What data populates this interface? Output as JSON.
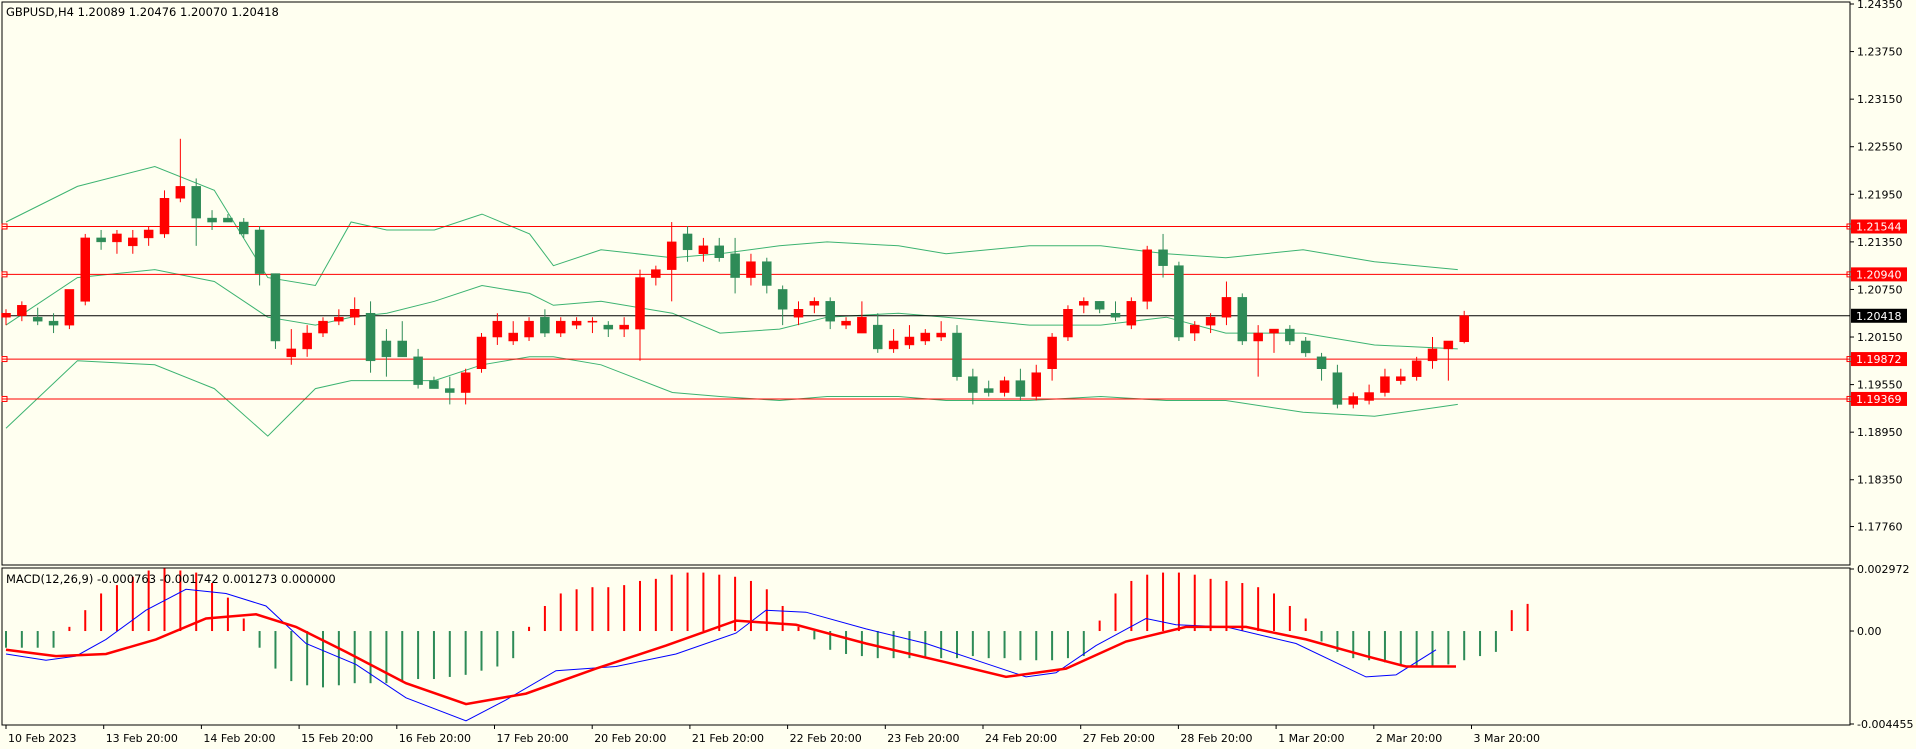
{
  "colors": {
    "background": "#fffff0",
    "frame": "#000000",
    "bull": "#2e8b57",
    "bear": "#ff0000",
    "bollinger": "#3cb371",
    "levels": "#ff0000",
    "current_price_line": "#000000",
    "macd_line": "#0000ff",
    "signal_line": "#ff0000"
  },
  "main_header": "GBPUSD,H4  1.20089 1.20476 1.20070 1.20418",
  "macd_header": "MACD(12,26,9) -0.000763 -0.001742 0.001273 0.000000",
  "chart_data": [
    {
      "type": "candlestick",
      "symbol": "GBPUSD",
      "timeframe": "H4",
      "ohlc_current": {
        "open": 1.20089,
        "high": 1.20476,
        "low": 1.2007,
        "close": 1.20418
      },
      "ylim": [
        1.173,
        1.2435
      ],
      "y_ticks": [
        "1.24350",
        "1.23750",
        "1.23150",
        "1.22550",
        "1.21950",
        "1.21350",
        "1.20750",
        "1.20150",
        "1.19550",
        "1.18950",
        "1.18350",
        "1.17760"
      ],
      "x_tick_labels": [
        "10 Feb 2023",
        "13 Feb 20:00",
        "14 Feb 20:00",
        "15 Feb 20:00",
        "16 Feb 20:00",
        "17 Feb 20:00",
        "20 Feb 20:00",
        "21 Feb 20:00",
        "22 Feb 20:00",
        "23 Feb 20:00",
        "24 Feb 20:00",
        "27 Feb 20:00",
        "28 Feb 20:00",
        "1 Mar 20:00",
        "2 Mar 20:00",
        "3 Mar 20:00"
      ],
      "horizontal_levels": [
        "1.21544",
        "1.20940",
        "1.19872",
        "1.19369"
      ],
      "current_price_label": "1.20418",
      "candles": [
        [
          1.204,
          1.205,
          1.203,
          1.2045
        ],
        [
          1.2042,
          1.206,
          1.2035,
          1.2055
        ],
        [
          1.204,
          1.2052,
          1.203,
          1.2035
        ],
        [
          1.2035,
          1.2045,
          1.202,
          1.203
        ],
        [
          1.203,
          1.207,
          1.2025,
          1.2075
        ],
        [
          1.206,
          1.2145,
          1.2055,
          1.214
        ],
        [
          1.214,
          1.215,
          1.2125,
          1.2135
        ],
        [
          1.2135,
          1.215,
          1.212,
          1.2145
        ],
        [
          1.213,
          1.215,
          1.212,
          1.214
        ],
        [
          1.214,
          1.2155,
          1.213,
          1.215
        ],
        [
          1.2145,
          1.22,
          1.214,
          1.219
        ],
        [
          1.219,
          1.2265,
          1.2185,
          1.2205
        ],
        [
          1.2205,
          1.2215,
          1.213,
          1.2165
        ],
        [
          1.2165,
          1.2175,
          1.215,
          1.216
        ],
        [
          1.2165,
          1.217,
          1.216,
          1.216
        ],
        [
          1.216,
          1.2165,
          1.214,
          1.2145
        ],
        [
          1.215,
          1.2155,
          1.208,
          1.2095
        ],
        [
          1.2095,
          1.2095,
          1.2,
          1.201
        ],
        [
          1.199,
          1.2025,
          1.198,
          1.2
        ],
        [
          1.2,
          1.203,
          1.199,
          1.202
        ],
        [
          1.202,
          1.204,
          1.2015,
          1.2035
        ],
        [
          1.2035,
          1.205,
          1.203,
          1.204
        ],
        [
          1.204,
          1.2065,
          1.203,
          1.205
        ],
        [
          1.2045,
          1.206,
          1.197,
          1.1985
        ],
        [
          1.201,
          1.2025,
          1.1965,
          1.199
        ],
        [
          1.201,
          1.2035,
          1.199,
          1.199
        ],
        [
          1.199,
          1.2,
          1.195,
          1.1955
        ],
        [
          1.196,
          1.1965,
          1.195,
          1.195
        ],
        [
          1.195,
          1.1965,
          1.193,
          1.1945
        ],
        [
          1.1945,
          1.1975,
          1.193,
          1.197
        ],
        [
          1.1975,
          1.202,
          1.197,
          1.2015
        ],
        [
          1.2015,
          1.2045,
          1.2005,
          1.2035
        ],
        [
          1.201,
          1.2035,
          1.2005,
          1.202
        ],
        [
          1.2015,
          1.204,
          1.201,
          1.2035
        ],
        [
          1.204,
          1.205,
          1.2015,
          1.202
        ],
        [
          1.202,
          1.204,
          1.2015,
          1.2035
        ],
        [
          1.203,
          1.204,
          1.2025,
          1.2035
        ],
        [
          1.2035,
          1.204,
          1.202,
          1.2035
        ],
        [
          1.203,
          1.2035,
          1.2015,
          1.2025
        ],
        [
          1.2025,
          1.204,
          1.2015,
          1.203
        ],
        [
          1.2025,
          1.21,
          1.1985,
          1.209
        ],
        [
          1.209,
          1.2105,
          1.208,
          1.21
        ],
        [
          1.21,
          1.216,
          1.206,
          1.2135
        ],
        [
          1.2145,
          1.2155,
          1.211,
          1.2125
        ],
        [
          1.212,
          1.214,
          1.211,
          1.213
        ],
        [
          1.213,
          1.214,
          1.211,
          1.2115
        ],
        [
          1.212,
          1.214,
          1.207,
          1.209
        ],
        [
          1.209,
          1.212,
          1.208,
          1.211
        ],
        [
          1.211,
          1.2115,
          1.207,
          1.208
        ],
        [
          1.2075,
          1.208,
          1.203,
          1.205
        ],
        [
          1.204,
          1.206,
          1.203,
          1.205
        ],
        [
          1.2055,
          1.2065,
          1.2045,
          1.206
        ],
        [
          1.206,
          1.2065,
          1.2025,
          1.2035
        ],
        [
          1.203,
          1.204,
          1.2025,
          1.2035
        ],
        [
          1.202,
          1.206,
          1.202,
          1.204
        ],
        [
          1.203,
          1.2045,
          1.1995,
          1.2
        ],
        [
          1.2,
          1.2025,
          1.1995,
          1.201
        ],
        [
          1.2005,
          1.203,
          1.2,
          1.2015
        ],
        [
          1.201,
          1.2025,
          1.2005,
          1.202
        ],
        [
          1.2015,
          1.2035,
          1.201,
          1.202
        ],
        [
          1.202,
          1.203,
          1.196,
          1.1965
        ],
        [
          1.1965,
          1.1975,
          1.193,
          1.1945
        ],
        [
          1.195,
          1.196,
          1.194,
          1.1945
        ],
        [
          1.1945,
          1.1965,
          1.194,
          1.196
        ],
        [
          1.196,
          1.1975,
          1.1935,
          1.194
        ],
        [
          1.194,
          1.198,
          1.1935,
          1.197
        ],
        [
          1.1975,
          1.202,
          1.196,
          1.2015
        ],
        [
          1.2015,
          1.2055,
          1.201,
          1.205
        ],
        [
          1.2055,
          1.2065,
          1.2045,
          1.206
        ],
        [
          1.206,
          1.206,
          1.2045,
          1.205
        ],
        [
          1.2045,
          1.206,
          1.2035,
          1.204
        ],
        [
          1.203,
          1.2065,
          1.2025,
          1.206
        ],
        [
          1.206,
          1.213,
          1.205,
          1.2125
        ],
        [
          1.2125,
          1.2145,
          1.209,
          1.2105
        ],
        [
          1.2105,
          1.211,
          1.201,
          1.2015
        ],
        [
          1.202,
          1.2035,
          1.201,
          1.203
        ],
        [
          1.203,
          1.2045,
          1.202,
          1.204
        ],
        [
          1.204,
          1.2085,
          1.203,
          1.2065
        ],
        [
          1.2065,
          1.207,
          1.2005,
          1.201
        ],
        [
          1.201,
          1.203,
          1.1965,
          1.202
        ],
        [
          1.202,
          1.2025,
          1.1995,
          1.2025
        ],
        [
          1.2025,
          1.203,
          1.2005,
          1.201
        ],
        [
          1.201,
          1.2015,
          1.199,
          1.1995
        ],
        [
          1.199,
          1.1995,
          1.196,
          1.1975
        ],
        [
          1.197,
          1.198,
          1.1925,
          1.193
        ],
        [
          1.193,
          1.1945,
          1.1925,
          1.194
        ],
        [
          1.1935,
          1.1955,
          1.193,
          1.1945
        ],
        [
          1.1945,
          1.1975,
          1.194,
          1.1965
        ],
        [
          1.196,
          1.1975,
          1.1955,
          1.1965
        ],
        [
          1.1965,
          1.199,
          1.196,
          1.1985
        ],
        [
          1.1985,
          1.2015,
          1.1975,
          1.2
        ],
        [
          1.2,
          1.201,
          1.196,
          1.201
        ],
        [
          1.2009,
          1.2048,
          1.2007,
          1.2042
        ]
      ],
      "bollinger": {
        "upper": [
          [
            0,
            1.216
          ],
          [
            12,
            1.2205
          ],
          [
            25,
            1.223
          ],
          [
            35,
            1.22
          ],
          [
            44,
            1.209
          ],
          [
            52,
            1.208
          ],
          [
            58,
            1.216
          ],
          [
            64,
            1.215
          ],
          [
            72,
            1.215
          ],
          [
            80,
            1.217
          ],
          [
            88,
            1.2145
          ],
          [
            92,
            1.2105
          ],
          [
            100,
            1.2125
          ],
          [
            112,
            1.2115
          ],
          [
            120,
            1.212
          ],
          [
            130,
            1.213
          ],
          [
            138,
            1.2135
          ],
          [
            150,
            1.213
          ],
          [
            158,
            1.212
          ],
          [
            172,
            1.213
          ],
          [
            184,
            1.213
          ],
          [
            195,
            1.212
          ],
          [
            205,
            1.2115
          ],
          [
            218,
            1.2125
          ],
          [
            230,
            1.211
          ],
          [
            244,
            1.21
          ]
        ],
        "middle": [
          [
            0,
            1.203
          ],
          [
            12,
            1.209
          ],
          [
            25,
            1.21
          ],
          [
            35,
            1.2085
          ],
          [
            44,
            1.204
          ],
          [
            52,
            1.203
          ],
          [
            58,
            1.204
          ],
          [
            64,
            1.2045
          ],
          [
            72,
            1.206
          ],
          [
            80,
            1.208
          ],
          [
            88,
            1.207
          ],
          [
            92,
            1.2055
          ],
          [
            100,
            1.206
          ],
          [
            112,
            1.2045
          ],
          [
            120,
            1.202
          ],
          [
            130,
            1.2025
          ],
          [
            138,
            1.204
          ],
          [
            150,
            1.2045
          ],
          [
            158,
            1.204
          ],
          [
            172,
            1.203
          ],
          [
            184,
            1.203
          ],
          [
            195,
            1.204
          ],
          [
            205,
            1.202
          ],
          [
            218,
            1.202
          ],
          [
            230,
            1.2005
          ],
          [
            244,
            1.2
          ]
        ],
        "lower": [
          [
            0,
            1.19
          ],
          [
            12,
            1.1985
          ],
          [
            25,
            1.198
          ],
          [
            35,
            1.195
          ],
          [
            44,
            1.189
          ],
          [
            52,
            1.195
          ],
          [
            58,
            1.196
          ],
          [
            64,
            1.196
          ],
          [
            72,
            1.196
          ],
          [
            80,
            1.198
          ],
          [
            88,
            1.199
          ],
          [
            92,
            1.199
          ],
          [
            100,
            1.198
          ],
          [
            112,
            1.1945
          ],
          [
            120,
            1.194
          ],
          [
            130,
            1.1935
          ],
          [
            138,
            1.194
          ],
          [
            150,
            1.194
          ],
          [
            158,
            1.1935
          ],
          [
            172,
            1.1935
          ],
          [
            184,
            1.194
          ],
          [
            195,
            1.1935
          ],
          [
            205,
            1.1935
          ],
          [
            218,
            1.192
          ],
          [
            230,
            1.1915
          ],
          [
            244,
            1.193
          ]
        ]
      }
    },
    {
      "type": "macd",
      "params": "12,26,9",
      "values": {
        "macd": -0.000763,
        "signal": -0.001742,
        "histogram": 0.001273
      },
      "ylim": [
        -0.004455,
        0.002972
      ],
      "y_ticks": [
        "0.002972",
        "0.00",
        "-0.004455"
      ],
      "histogram": [
        -0.0008,
        -0.0008,
        -0.0008,
        -0.0008,
        0.0002,
        0.001,
        0.0018,
        0.0022,
        0.0026,
        0.0029,
        0.003,
        0.0029,
        0.0028,
        0.0023,
        0.0016,
        0.0006,
        -0.0008,
        -0.0018,
        -0.0024,
        -0.0026,
        -0.0027,
        -0.0026,
        -0.0025,
        -0.0025,
        -0.0025,
        -0.0024,
        -0.0023,
        -0.0023,
        -0.0022,
        -0.0021,
        -0.0019,
        -0.0017,
        -0.0013,
        0.0002,
        0.0012,
        0.0018,
        0.002,
        0.0021,
        0.0021,
        0.0022,
        0.0024,
        0.0025,
        0.0027,
        0.0028,
        0.0028,
        0.0027,
        0.0026,
        0.0024,
        0.002,
        0.0012,
        0.0002,
        -0.0004,
        -0.0009,
        -0.0011,
        -0.0012,
        -0.0013,
        -0.0013,
        -0.0013,
        -0.0013,
        -0.0013,
        -0.0013,
        -0.0012,
        -0.0013,
        -0.0013,
        -0.0014,
        -0.0014,
        -0.0014,
        -0.0013,
        -0.0012,
        0.0005,
        0.0018,
        0.0024,
        0.0027,
        0.0028,
        0.0028,
        0.0027,
        0.0025,
        0.0024,
        0.0023,
        0.0021,
        0.0018,
        0.0012,
        0.0006,
        -0.0005,
        -0.001,
        -0.0013,
        -0.0014,
        -0.0015,
        -0.0016,
        -0.0017,
        -0.0017,
        -0.0016,
        -0.0014,
        -0.0012,
        -0.001,
        0.001,
        0.0013
      ],
      "macd_line": [
        [
          0,
          -0.0011
        ],
        [
          8,
          -0.0014
        ],
        [
          14,
          -0.0012
        ],
        [
          20,
          -0.0004
        ],
        [
          28,
          0.001
        ],
        [
          36,
          0.002
        ],
        [
          44,
          0.0018
        ],
        [
          52,
          0.0012
        ],
        [
          60,
          -0.0006
        ],
        [
          70,
          -0.0016
        ],
        [
          80,
          -0.0032
        ],
        [
          92,
          -0.0043
        ],
        [
          100,
          -0.0033
        ],
        [
          110,
          -0.0019
        ],
        [
          122,
          -0.0017
        ],
        [
          134,
          -0.0011
        ],
        [
          146,
          -0.0001
        ],
        [
          152,
          0.001
        ],
        [
          160,
          0.0009
        ],
        [
          172,
          0.0001
        ],
        [
          184,
          -0.0006
        ],
        [
          194,
          -0.0014
        ],
        [
          204,
          -0.0022
        ],
        [
          210,
          -0.002
        ],
        [
          218,
          -0.0007
        ],
        [
          228,
          0.0006
        ],
        [
          234,
          0.0003
        ],
        [
          244,
          0.0002
        ],
        [
          258,
          -0.0006
        ],
        [
          272,
          -0.0022
        ],
        [
          278,
          -0.0021
        ],
        [
          286,
          -0.0009
        ]
      ],
      "signal_line": [
        [
          0,
          -0.0009
        ],
        [
          10,
          -0.0012
        ],
        [
          20,
          -0.0011
        ],
        [
          30,
          -0.0004
        ],
        [
          40,
          0.0006
        ],
        [
          50,
          0.0008
        ],
        [
          58,
          0.0002
        ],
        [
          68,
          -0.001
        ],
        [
          80,
          -0.0025
        ],
        [
          92,
          -0.0035
        ],
        [
          104,
          -0.003
        ],
        [
          118,
          -0.0018
        ],
        [
          132,
          -0.0007
        ],
        [
          146,
          0.0005
        ],
        [
          158,
          0.0003
        ],
        [
          172,
          -0.0006
        ],
        [
          188,
          -0.0015
        ],
        [
          200,
          -0.0022
        ],
        [
          212,
          -0.0018
        ],
        [
          224,
          -0.0005
        ],
        [
          236,
          0.0002
        ],
        [
          248,
          0.0002
        ],
        [
          260,
          -0.0004
        ],
        [
          272,
          -0.0012
        ],
        [
          280,
          -0.0017
        ],
        [
          290,
          -0.0017
        ]
      ]
    }
  ]
}
